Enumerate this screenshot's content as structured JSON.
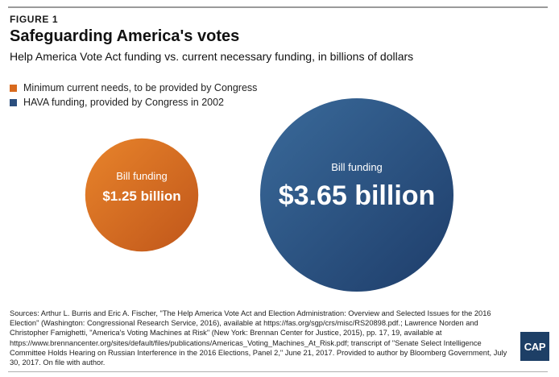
{
  "figure_label": "FIGURE 1",
  "chart_data": {
    "type": "bubble",
    "title": "Safeguarding America's votes",
    "subtitle": "Help America Vote Act funding vs. current necessary funding, in billions of dollars",
    "units": "billions of dollars",
    "legend": [
      {
        "label": "Minimum current needs, to be provided by Congress",
        "color": "#d86a1e"
      },
      {
        "label": "HAVA funding, provided by Congress in 2002",
        "color": "#2b4f7e"
      }
    ],
    "series": [
      {
        "label": "Bill funding",
        "value": 1.25,
        "display": "$1.25 billion",
        "color_light": "#e8842b",
        "color_dark": "#c0561a"
      },
      {
        "label": "Bill funding",
        "value": 3.65,
        "display": "$3.65 billion",
        "color_light": "#3a6a9a",
        "color_dark": "#1e3d6a"
      }
    ]
  },
  "sources": "Sources: Arthur L. Burris and Eric A. Fischer, \"The Help America Vote Act and Election Administration: Overview and Selected Issues for the 2016 Election\" (Washington: Congressional Research Service, 2016), available at https://fas.org/sgp/crs/misc/RS20898.pdf.; Lawrence Norden and Christopher Famighetti, \"America's Voting Machines at Risk\" (New York: Brennan Center for Justice, 2015), pp. 17, 19, available at https://www.brennancenter.org/sites/default/files/publications/Americas_Voting_Machines_At_Risk.pdf; transcript of \"Senate Select Intelligence Committee Holds Hearing on Russian Interference in the 2016 Elections, Panel 2,\" June 21, 2017. Provided to author by Bloomberg Government, July 30, 2017. On file with author.",
  "logo_text": "CAP"
}
